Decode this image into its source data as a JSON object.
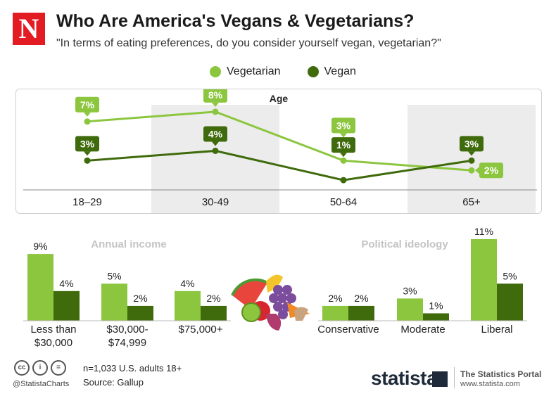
{
  "header": {
    "logo_letter": "N",
    "title": "Who Are America's Vegans & Vegetarians?",
    "subtitle": "\"In terms of eating preferences, do you consider yourself vegan, vegetarian?\""
  },
  "legend": [
    {
      "name": "Vegetarian",
      "color": "#8cc63f"
    },
    {
      "name": "Vegan",
      "color": "#3f6b0c"
    }
  ],
  "chart_data": [
    {
      "type": "line",
      "title": "Age",
      "categories": [
        "18–29",
        "30-49",
        "50-64",
        "65+"
      ],
      "series": [
        {
          "name": "Vegetarian",
          "values": [
            7,
            8,
            3,
            2
          ],
          "labels": [
            "7%",
            "8%",
            "3%",
            "2%"
          ],
          "color": "#8cc63f"
        },
        {
          "name": "Vegan",
          "values": [
            3,
            4,
            1,
            3
          ],
          "labels": [
            "3%",
            "4%",
            "1%",
            "3%"
          ],
          "color": "#3f6b0c"
        }
      ],
      "ylim": [
        0,
        9
      ],
      "legend": "top-center"
    },
    {
      "type": "bar",
      "title": "Annual income",
      "categories": [
        "Less than\n$30,000",
        "$30,000-\n$74,999",
        "$75,000+"
      ],
      "series": [
        {
          "name": "Vegetarian",
          "values": [
            9,
            5,
            4
          ],
          "labels": [
            "9%",
            "5%",
            "4%"
          ],
          "color": "#8cc63f"
        },
        {
          "name": "Vegan",
          "values": [
            4,
            2,
            2
          ],
          "labels": [
            "4%",
            "2%",
            "2%"
          ],
          "color": "#3f6b0c"
        }
      ],
      "ylim": [
        0,
        11
      ]
    },
    {
      "type": "bar",
      "title": "Political ideology",
      "categories": [
        "Conservative",
        "Moderate",
        "Liberal"
      ],
      "series": [
        {
          "name": "Vegetarian",
          "values": [
            2,
            3,
            11
          ],
          "labels": [
            "2%",
            "3%",
            "11%"
          ],
          "color": "#8cc63f"
        },
        {
          "name": "Vegan",
          "values": [
            2,
            1,
            5
          ],
          "labels": [
            "2%",
            "1%",
            "5%"
          ],
          "color": "#3f6b0c"
        }
      ],
      "ylim": [
        0,
        11
      ]
    }
  ],
  "footer": {
    "license_icons": [
      "cc",
      "i",
      "="
    ],
    "handle": "@StatistaCharts",
    "sample": "n=1,033 U.S. adults 18+",
    "source": "Source: Gallup",
    "brand": "statista",
    "portal": "The Statistics Portal",
    "portal_url": "www.statista.com"
  },
  "colors": {
    "vegetarian": "#8cc63f",
    "vegan": "#3f6b0c",
    "accent": "#e31b23",
    "band": "#ececec"
  },
  "icons": {
    "food": "fruit-vegetable-illustration-icon"
  }
}
